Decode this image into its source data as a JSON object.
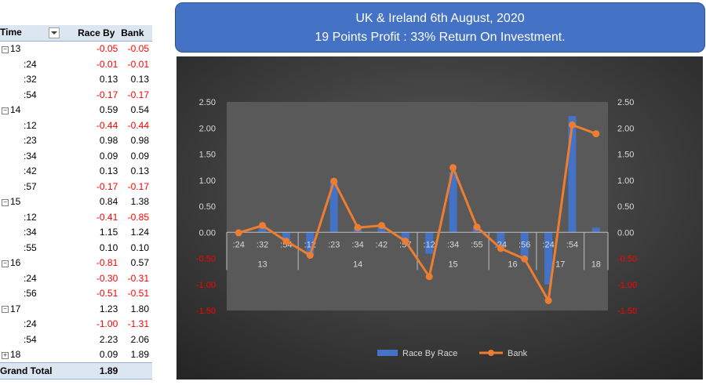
{
  "table": {
    "headers": {
      "time": "Time",
      "race": "Race By",
      "bank": "Bank"
    },
    "rows": [
      {
        "type": "group",
        "label": "13",
        "race": "-0.05",
        "bank": "-0.05",
        "exp": "−"
      },
      {
        "type": "child",
        "label": ":24",
        "race": "-0.01",
        "bank": "-0.01"
      },
      {
        "type": "child",
        "label": ":32",
        "race": "0.13",
        "bank": "0.13"
      },
      {
        "type": "child",
        "label": ":54",
        "race": "-0.17",
        "bank": "-0.17"
      },
      {
        "type": "group",
        "label": "14",
        "race": "0.59",
        "bank": "0.54",
        "exp": "−"
      },
      {
        "type": "child",
        "label": ":12",
        "race": "-0.44",
        "bank": "-0.44"
      },
      {
        "type": "child",
        "label": ":23",
        "race": "0.98",
        "bank": "0.98"
      },
      {
        "type": "child",
        "label": ":34",
        "race": "0.09",
        "bank": "0.09"
      },
      {
        "type": "child",
        "label": ":42",
        "race": "0.13",
        "bank": "0.13"
      },
      {
        "type": "child",
        "label": ":57",
        "race": "-0.17",
        "bank": "-0.17"
      },
      {
        "type": "group",
        "label": "15",
        "race": "0.84",
        "bank": "1.38",
        "exp": "−"
      },
      {
        "type": "child",
        "label": ":12",
        "race": "-0.41",
        "bank": "-0.85"
      },
      {
        "type": "child",
        "label": ":34",
        "race": "1.15",
        "bank": "1.24"
      },
      {
        "type": "child",
        "label": ":55",
        "race": "0.10",
        "bank": "0.10"
      },
      {
        "type": "group",
        "label": "16",
        "race": "-0.81",
        "bank": "0.57",
        "exp": "−"
      },
      {
        "type": "child",
        "label": ":24",
        "race": "-0.30",
        "bank": "-0.31"
      },
      {
        "type": "child",
        "label": ":56",
        "race": "-0.51",
        "bank": "-0.51"
      },
      {
        "type": "group",
        "label": "17",
        "race": "1.23",
        "bank": "1.80",
        "exp": "−"
      },
      {
        "type": "child",
        "label": ":24",
        "race": "-1.00",
        "bank": "-1.31"
      },
      {
        "type": "child",
        "label": ":54",
        "race": "2.23",
        "bank": "2.06"
      },
      {
        "type": "group",
        "label": "18",
        "race": "0.09",
        "bank": "1.89",
        "exp": "+"
      },
      {
        "type": "total",
        "label": "Grand Total",
        "race": "1.89",
        "bank": ""
      }
    ]
  },
  "title": {
    "line1": "UK & Ireland 6th August, 2020",
    "line2": "19 Points Profit : 33% Return On Investment."
  },
  "colors": {
    "bar": "#4472c4",
    "line": "#ed7d31",
    "negative_text": "#ff0000",
    "chart_bg_light": "#5a5a5a",
    "chart_bg_dark": "#262626",
    "plot_bg": "#595959"
  },
  "chart_data": {
    "type": "bar+line",
    "categories": [
      ":24",
      ":32",
      ":54",
      ":12",
      ":23",
      ":34",
      ":42",
      ":57",
      ":12",
      ":34",
      ":55",
      ":24",
      ":56",
      ":24",
      ":54",
      ""
    ],
    "groups": [
      {
        "label": "13",
        "count": 3
      },
      {
        "label": "14",
        "count": 5
      },
      {
        "label": "15",
        "count": 3
      },
      {
        "label": "16",
        "count": 2
      },
      {
        "label": "17",
        "count": 2
      },
      {
        "label": "18",
        "count": 1
      }
    ],
    "series": [
      {
        "name": "Race By Race",
        "kind": "bar",
        "values": [
          -0.01,
          0.13,
          -0.17,
          -0.44,
          0.98,
          0.09,
          0.13,
          -0.17,
          -0.41,
          1.15,
          0.1,
          -0.3,
          -0.51,
          -1.0,
          2.23,
          0.09
        ]
      },
      {
        "name": "Bank",
        "kind": "line",
        "values": [
          -0.01,
          0.13,
          -0.17,
          -0.44,
          0.98,
          0.09,
          0.13,
          -0.17,
          -0.85,
          1.24,
          0.1,
          -0.31,
          -0.51,
          -1.31,
          2.06,
          1.89
        ]
      }
    ],
    "ylim": [
      -1.5,
      2.5
    ],
    "yticks": [
      "2.50",
      "2.00",
      "1.50",
      "1.00",
      "0.50",
      "0.00",
      "-0.50",
      "-1.00",
      "-1.50"
    ],
    "ytick_values": [
      2.5,
      2.0,
      1.5,
      1.0,
      0.5,
      0.0,
      -0.5,
      -1.0,
      -1.5
    ],
    "legend_position": "bottom",
    "grid": false
  }
}
